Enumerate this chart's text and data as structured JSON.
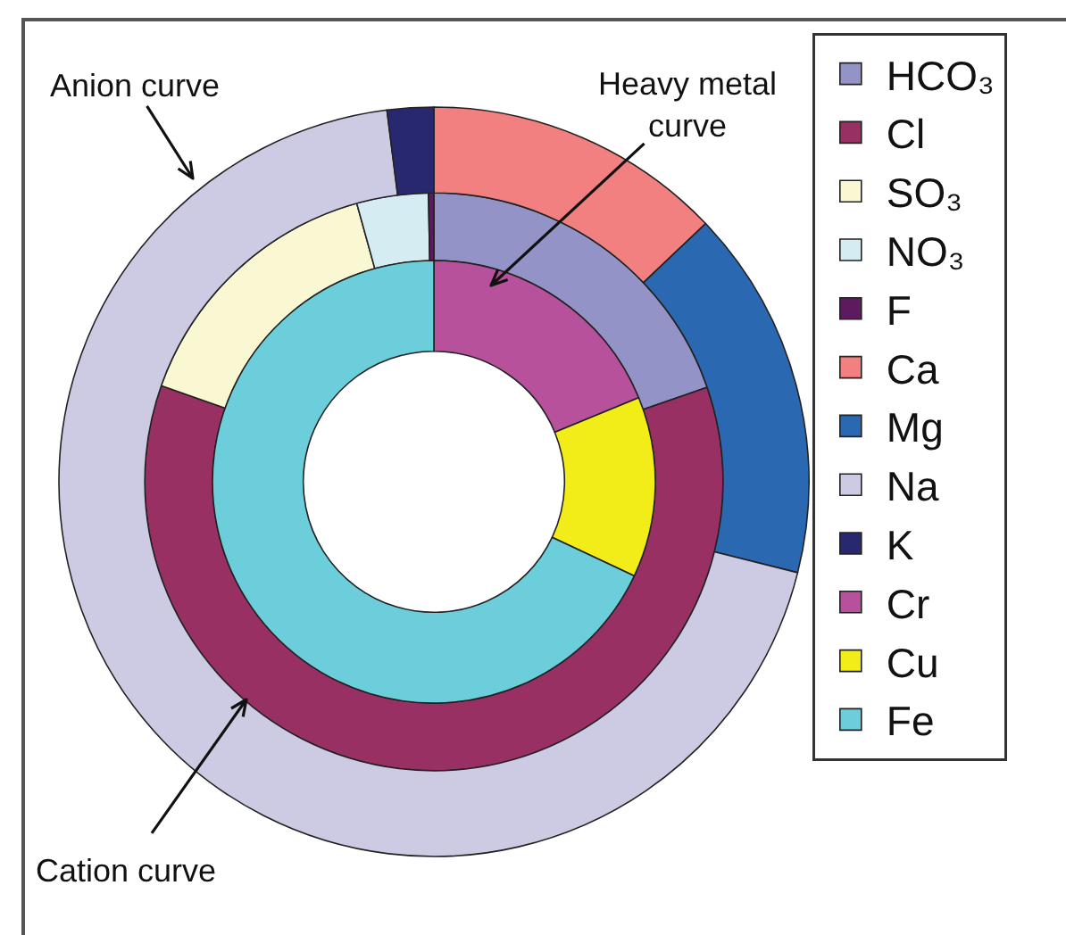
{
  "chart_data": {
    "type": "donut",
    "categories": [
      "HCO₃",
      "Cl",
      "SO₃",
      "NO₃",
      "F",
      "Ca",
      "Mg",
      "Na",
      "K",
      "Cr",
      "Cu",
      "Fe"
    ],
    "colors": [
      "#9493c8",
      "#983064",
      "#faf8d2",
      "#d4ecf2",
      "#5e1a5e",
      "#f28080",
      "#2a69b2",
      "#cdcae4",
      "#282870",
      "#b8519c",
      "#f2ec18",
      "#6ccddb"
    ],
    "series": [
      {
        "values": [
          null,
          null,
          null,
          null,
          null,
          12.9,
          16,
          69.1,
          2,
          null,
          null,
          null
        ]
      },
      {
        "values": [
          19.7,
          60.7,
          15.3,
          4,
          0.3,
          null,
          null,
          null,
          null,
          null,
          null,
          null
        ]
      },
      {
        "values": [
          null,
          null,
          null,
          null,
          null,
          null,
          null,
          null,
          null,
          18.8,
          13.2,
          68
        ]
      }
    ],
    "annotations": [
      "Anion curve",
      "Cation curve",
      "Heavy metal curve"
    ],
    "legend": "right"
  }
}
